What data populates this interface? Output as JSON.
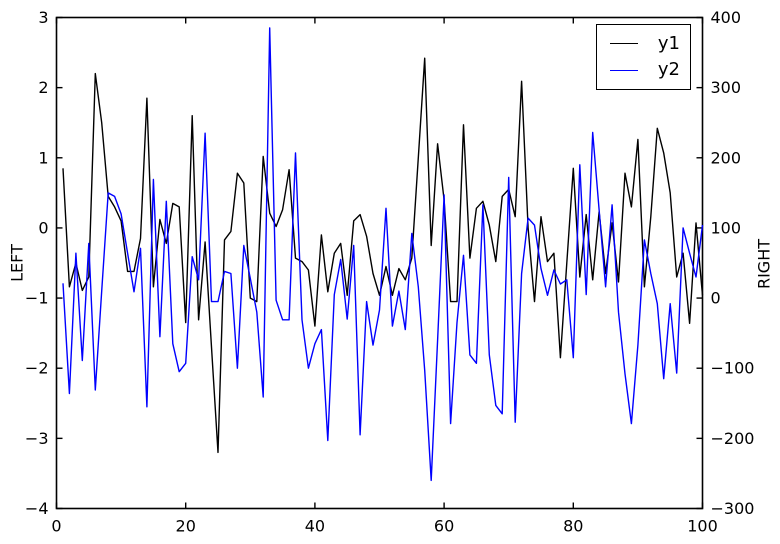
{
  "chart_data": {
    "type": "line",
    "title": "",
    "xlabel": "",
    "ylabel_left": "LEFT",
    "ylabel_right": "RIGHT",
    "xlim": [
      0,
      100
    ],
    "ylim_left": [
      -4,
      3
    ],
    "ylim_right": [
      -300,
      400
    ],
    "grid": false,
    "frame_color": "#000000",
    "background": "#ffffff",
    "xticks": [
      0,
      20,
      40,
      60,
      80,
      100
    ],
    "xtick_labels": [
      "0",
      "20",
      "40",
      "60",
      "80",
      "100"
    ],
    "yticks_left": [
      -4,
      -3,
      -2,
      -1,
      0,
      1,
      2,
      3
    ],
    "ytick_labels_left": [
      "−4",
      "−3",
      "−2",
      "−1",
      "0",
      "1",
      "2",
      "3"
    ],
    "yticks_right": [
      -300,
      -200,
      -100,
      0,
      100,
      200,
      300,
      400
    ],
    "ytick_labels_right": [
      "−300",
      "−200",
      "−100",
      "0",
      "100",
      "200",
      "300",
      "400"
    ],
    "legend": {
      "position": "upper right",
      "entries": [
        {
          "label": "y1",
          "color": "#000000"
        },
        {
          "label": "y2",
          "color": "#0000ff"
        }
      ]
    },
    "x": [
      1,
      2,
      3,
      4,
      5,
      6,
      7,
      8,
      9,
      10,
      11,
      12,
      13,
      14,
      15,
      16,
      17,
      18,
      19,
      20,
      21,
      22,
      23,
      24,
      25,
      26,
      27,
      28,
      29,
      30,
      31,
      32,
      33,
      34,
      35,
      36,
      37,
      38,
      39,
      40,
      41,
      42,
      43,
      44,
      45,
      46,
      47,
      48,
      49,
      50,
      51,
      52,
      53,
      54,
      55,
      56,
      57,
      58,
      59,
      60,
      61,
      62,
      63,
      64,
      65,
      66,
      67,
      68,
      69,
      70,
      71,
      72,
      73,
      74,
      75,
      76,
      77,
      78,
      79,
      80,
      81,
      82,
      83,
      84,
      85,
      86,
      87,
      88,
      89,
      90,
      91,
      92,
      93,
      94,
      95,
      96,
      97,
      98,
      99,
      100
    ],
    "series": [
      {
        "name": "y1",
        "axis": "left",
        "color": "#000000",
        "values": [
          0.85,
          -0.84,
          -0.5,
          -0.89,
          -0.7,
          2.2,
          1.5,
          0.45,
          0.3,
          0.1,
          -0.62,
          -0.62,
          -0.15,
          1.85,
          -0.84,
          0.12,
          -0.22,
          0.35,
          0.3,
          -1.35,
          1.6,
          -1.31,
          -0.2,
          -1.7,
          -3.2,
          -0.17,
          -0.05,
          0.78,
          0.64,
          -1.0,
          -1.05,
          1.02,
          0.21,
          0.02,
          0.26,
          0.83,
          -0.43,
          -0.48,
          -0.6,
          -1.4,
          -0.1,
          -0.91,
          -0.36,
          -0.22,
          -0.96,
          0.1,
          0.19,
          -0.12,
          -0.65,
          -0.96,
          -0.55,
          -0.96,
          -0.58,
          -0.74,
          -0.43,
          1.0,
          2.42,
          -0.25,
          1.2,
          0.4,
          -1.05,
          -1.05,
          1.47,
          -0.43,
          0.28,
          0.38,
          0.04,
          -0.48,
          0.45,
          0.55,
          0.16,
          2.09,
          0.0,
          -1.05,
          0.16,
          -0.48,
          -0.36,
          -1.85,
          -0.5,
          0.85,
          -0.7,
          0.19,
          -0.74,
          0.23,
          -0.65,
          0.07,
          -0.77,
          0.78,
          0.3,
          1.26,
          -0.84,
          0.16,
          1.42,
          1.07,
          0.5,
          -0.7,
          -0.36,
          -1.36,
          0.07,
          -0.96
        ]
      },
      {
        "name": "y2",
        "axis": "right",
        "color": "#0000ff",
        "values": [
          21,
          -136,
          64,
          -89,
          78,
          -131,
          10,
          150,
          145,
          120,
          64,
          9,
          71,
          -155,
          169,
          -55,
          138,
          -65,
          -105,
          -93,
          59,
          26,
          235,
          -5,
          -5,
          38,
          35,
          -100,
          75,
          28,
          -20,
          -141,
          385,
          -3,
          -31,
          -31,
          207,
          -31,
          -100,
          -65,
          -45,
          -203,
          5,
          55,
          -30,
          75,
          -195,
          -5,
          -67,
          -17,
          128,
          -40,
          10,
          -45,
          92,
          16,
          -103,
          -260,
          -60,
          147,
          -179,
          -35,
          61,
          -81,
          -93,
          133,
          -81,
          -153,
          -165,
          172,
          -177,
          35,
          114,
          104,
          42,
          4,
          40,
          20,
          26,
          -85,
          190,
          5,
          236,
          126,
          16,
          133,
          -20,
          -108,
          -179,
          -67,
          83,
          35,
          -8,
          -115,
          -8,
          -107,
          100,
          64,
          30,
          104
        ]
      }
    ]
  }
}
